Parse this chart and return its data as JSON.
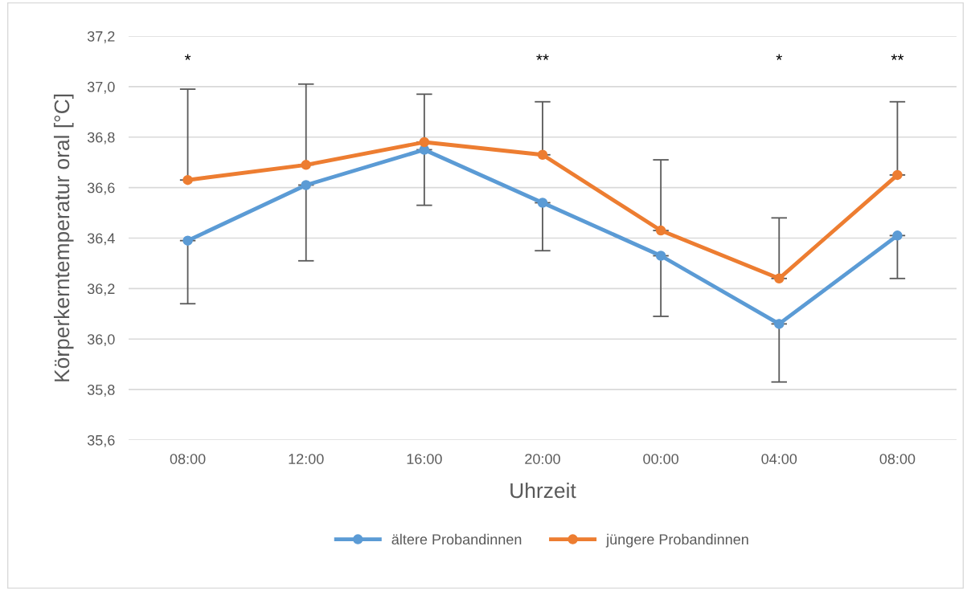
{
  "chart_data": {
    "type": "line",
    "xlabel": "Uhrzeit",
    "ylabel": "Körperkerntemperatur oral [°C]",
    "categories": [
      "08:00",
      "12:00",
      "16:00",
      "20:00",
      "00:00",
      "04:00",
      "08:00"
    ],
    "series": [
      {
        "name": "ältere Probandinnen",
        "color": "#5b9bd5",
        "values": [
          36.39,
          36.61,
          36.75,
          36.54,
          36.33,
          36.06,
          36.41
        ],
        "errors": [
          [
            36.14,
            36.39
          ],
          [
            36.31,
            36.61
          ],
          [
            36.53,
            36.75
          ],
          [
            36.35,
            36.54
          ],
          [
            36.09,
            36.33
          ],
          [
            35.83,
            36.06
          ],
          [
            36.24,
            36.41
          ]
        ]
      },
      {
        "name": "jüngere Probandinnen",
        "color": "#ed7d31",
        "values": [
          36.63,
          36.69,
          36.78,
          36.73,
          36.43,
          36.24,
          36.65
        ],
        "errors": [
          [
            36.63,
            36.99
          ],
          [
            36.69,
            37.01
          ],
          [
            36.78,
            36.97
          ],
          [
            36.73,
            36.94
          ],
          [
            36.43,
            36.71
          ],
          [
            36.24,
            36.48
          ],
          [
            36.65,
            36.94
          ]
        ]
      }
    ],
    "ylim": [
      35.6,
      37.2
    ],
    "yticks": [
      {
        "value": 35.6,
        "label": "35,6"
      },
      {
        "value": 35.8,
        "label": "35,8"
      },
      {
        "value": 36.0,
        "label": "36,0"
      },
      {
        "value": 36.2,
        "label": "36,2"
      },
      {
        "value": 36.4,
        "label": "36,4"
      },
      {
        "value": 36.6,
        "label": "36,6"
      },
      {
        "value": 36.8,
        "label": "36,8"
      },
      {
        "value": 37.0,
        "label": "37,0"
      },
      {
        "value": 37.2,
        "label": "37,2"
      }
    ],
    "annotations": [
      "*",
      "**",
      "*",
      "**"
    ],
    "grid": "y",
    "legend": "bottom",
    "marker": "circle",
    "line_style": "solid"
  }
}
